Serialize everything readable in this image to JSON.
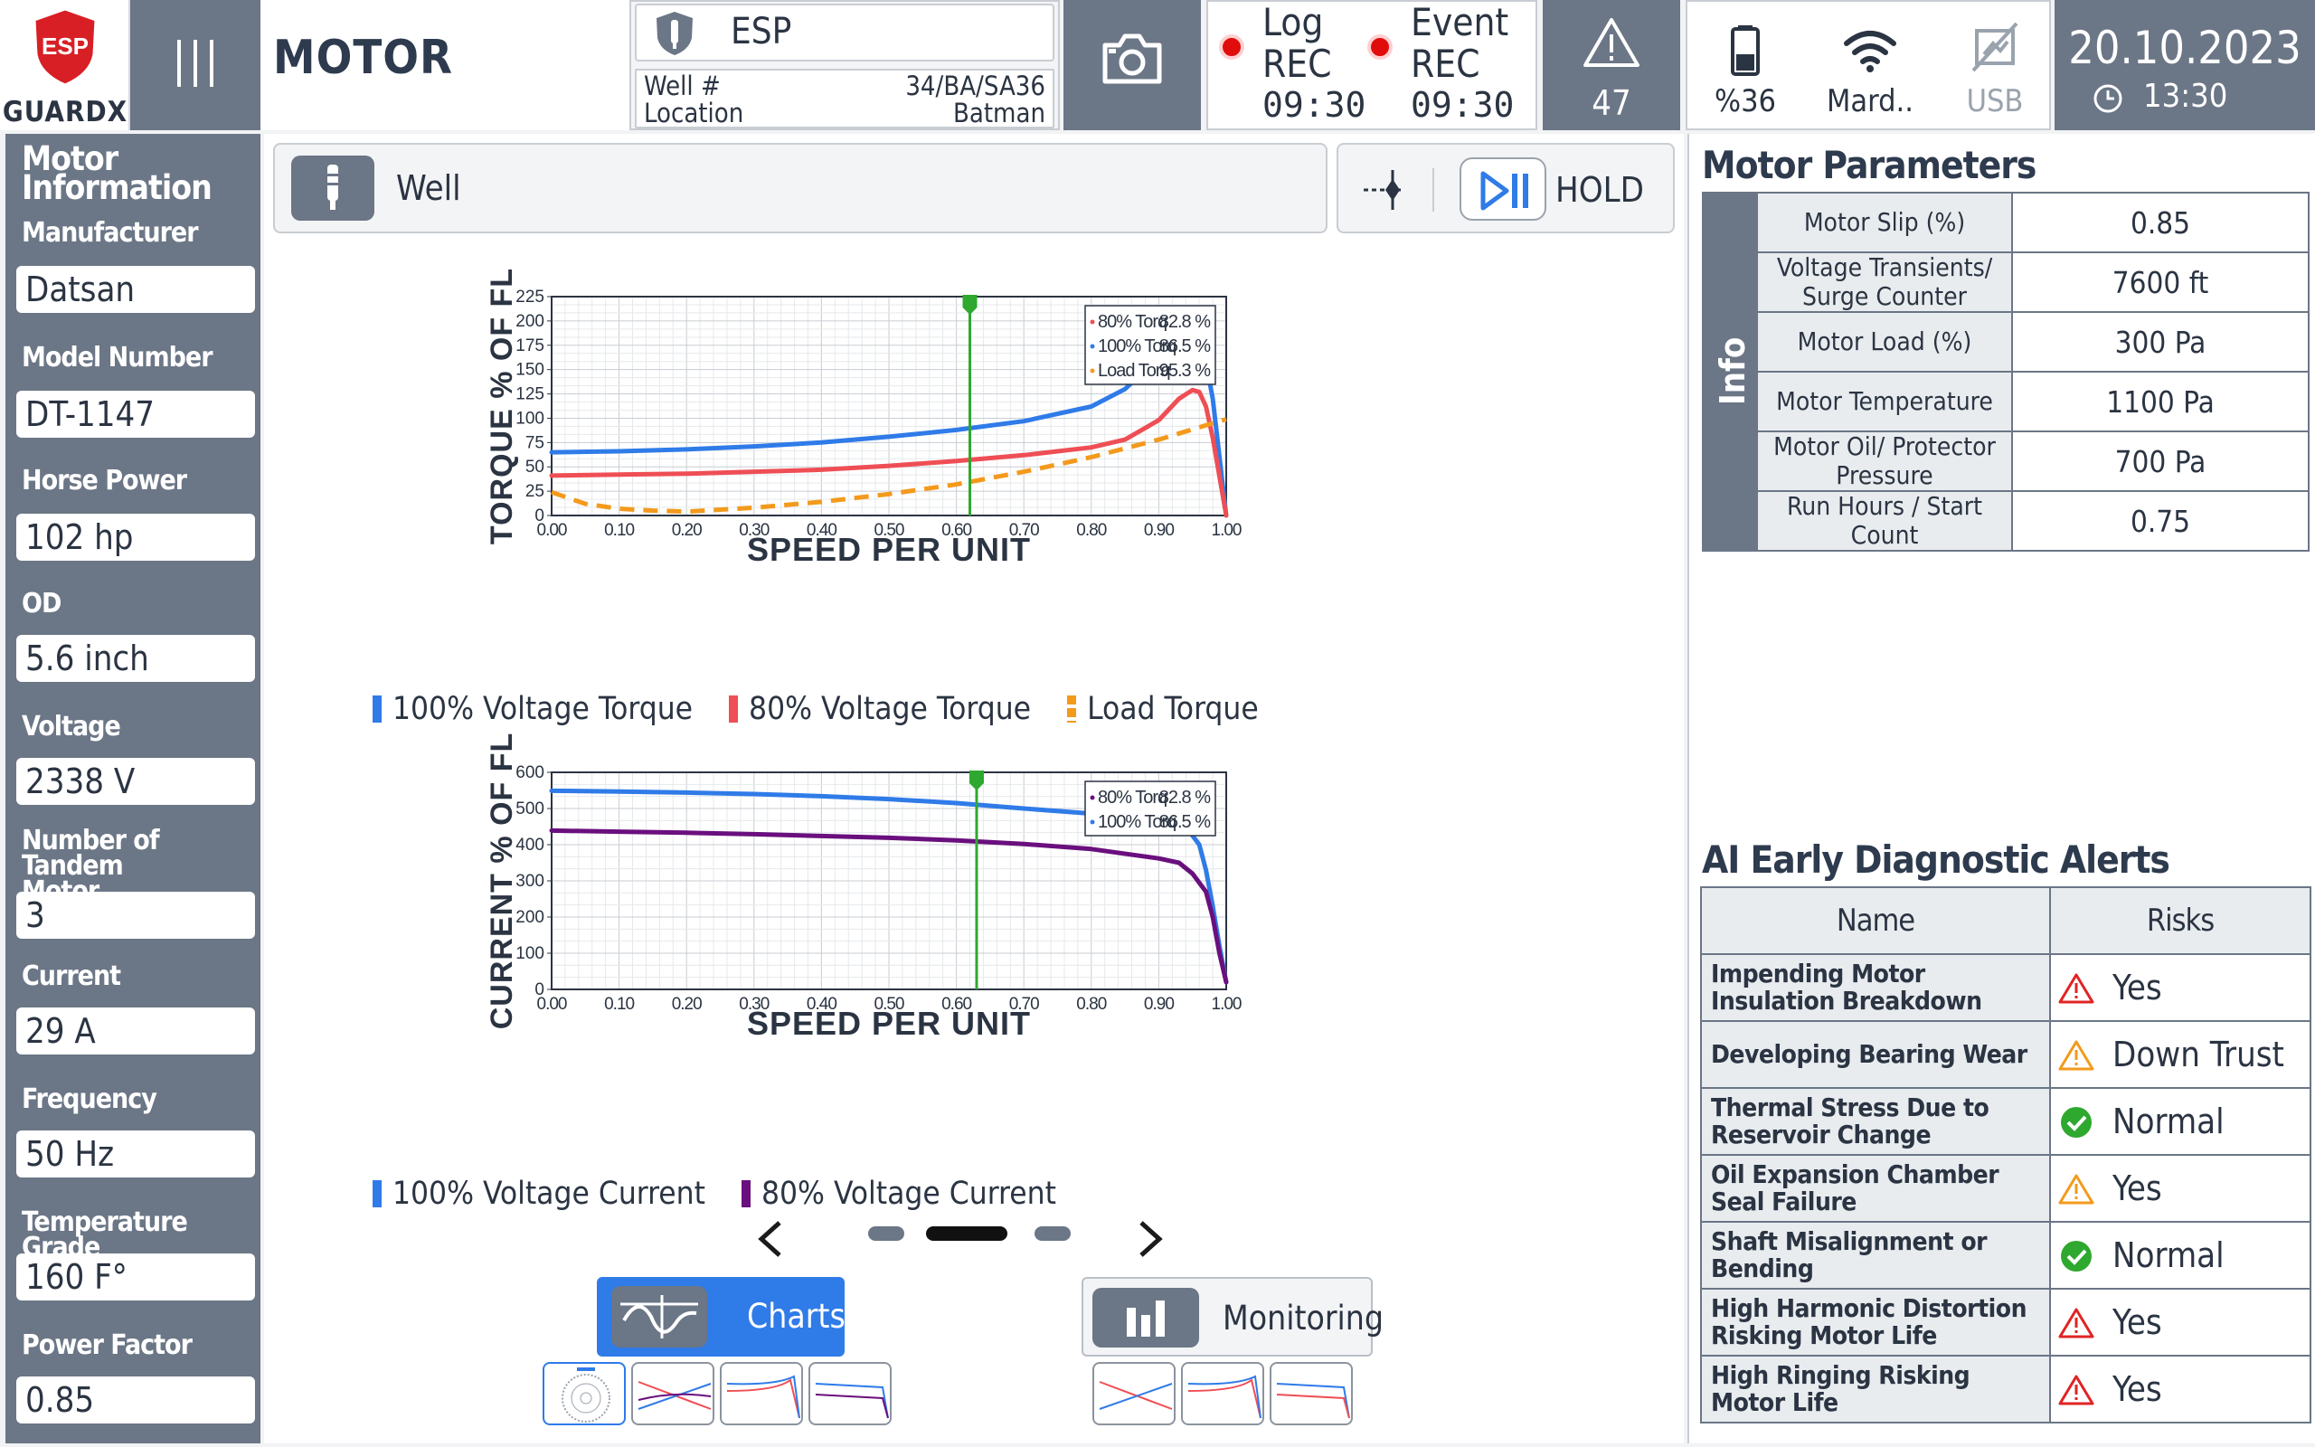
{
  "header": {
    "brand": {
      "badge": "ESP",
      "name": "GUARDX"
    },
    "title": "MOTOR",
    "esp": {
      "label": "ESP",
      "well_label": "Well #",
      "well_value": "34/BA/SA36",
      "location_label": "Location",
      "location_value": "Batman"
    },
    "log_rec": {
      "line1": "Log",
      "line2": "REC",
      "time": "09:30"
    },
    "event_rec": {
      "line1": "Event",
      "line2": "REC",
      "time": "09:30"
    },
    "alert_count": "47",
    "battery": "%36",
    "wifi": "Mard..",
    "usb": "USB",
    "date": "20.10.2023",
    "time": "13:30"
  },
  "motor_info": {
    "title": "Motor Information",
    "fields": [
      {
        "label": "Manufacturer",
        "value": "Datsan"
      },
      {
        "label": "Model Number",
        "value": "DT-1147"
      },
      {
        "label": "Horse Power",
        "value": "102 hp"
      },
      {
        "label": "OD",
        "value": "5.6 inch"
      },
      {
        "label": "Voltage",
        "value": "2338 V"
      },
      {
        "label": "Number of Tandem Motor",
        "value": "3"
      },
      {
        "label": "Current",
        "value": "29 A"
      },
      {
        "label": "Frequency",
        "value": "50 Hz"
      },
      {
        "label": "Temperature Grade",
        "value": "160 F°"
      },
      {
        "label": "Power Factor",
        "value": "0.85"
      }
    ]
  },
  "center": {
    "well_label": "Well",
    "hold_label": "HOLD",
    "tabs": {
      "charts": "Charts",
      "monitoring": "Monitoring"
    }
  },
  "colors": {
    "slate": "#6b7686",
    "blue": "#2f7be8",
    "red": "#ef4e55",
    "orange": "#f39a1d",
    "purple": "#6a0f7e",
    "green": "#2ea82e"
  },
  "chart_data": [
    {
      "type": "line",
      "xlabel": "SPEED PER UNIT",
      "ylabel": "TORQUE % OF FL",
      "xlim": [
        0,
        1
      ],
      "ylim": [
        0,
        225
      ],
      "xticks": [
        "0.00",
        "0.10",
        "0.20",
        "0.30",
        "0.40",
        "0.50",
        "0.60",
        "0.70",
        "0.80",
        "0.90",
        "1.00"
      ],
      "yticks": [
        "0",
        "25",
        "50",
        "75",
        "100",
        "125",
        "150",
        "175",
        "200",
        "225"
      ],
      "marker_x": 0.62,
      "series": [
        {
          "name": "100% Voltage Torque",
          "color": "#2f7be8",
          "style": "solid",
          "x": [
            0,
            0.1,
            0.2,
            0.3,
            0.4,
            0.5,
            0.6,
            0.7,
            0.8,
            0.85,
            0.9,
            0.93,
            0.95,
            0.96,
            0.98,
            1.0
          ],
          "y": [
            65,
            66,
            68,
            71,
            75,
            81,
            88,
            97,
            112,
            130,
            162,
            190,
            203,
            195,
            120,
            0
          ]
        },
        {
          "name": "80% Voltage Torque",
          "color": "#ef4e55",
          "style": "solid",
          "x": [
            0,
            0.1,
            0.2,
            0.3,
            0.4,
            0.5,
            0.6,
            0.7,
            0.8,
            0.85,
            0.9,
            0.93,
            0.95,
            0.96,
            0.97,
            0.98,
            1.0
          ],
          "y": [
            41,
            42,
            43,
            45,
            47,
            51,
            56,
            62,
            70,
            78,
            98,
            120,
            129,
            127,
            112,
            80,
            0
          ]
        },
        {
          "name": "Load Torque",
          "color": "#f39a1d",
          "style": "dashed",
          "x": [
            0,
            0.05,
            0.1,
            0.15,
            0.2,
            0.3,
            0.4,
            0.5,
            0.6,
            0.7,
            0.8,
            0.9,
            1.0
          ],
          "y": [
            24,
            12,
            7,
            5,
            4,
            8,
            14,
            22,
            32,
            45,
            60,
            78,
            99
          ]
        }
      ],
      "legend_box": [
        {
          "label": "80% Torq",
          "value": "82.8 %",
          "color": "#ef4e55"
        },
        {
          "label": "100% Torq",
          "value": "86.5 %",
          "color": "#2f7be8"
        },
        {
          "label": "Load Torq",
          "value": "95.3 %",
          "color": "#f39a1d"
        }
      ],
      "legend": [
        "100% Voltage Torque",
        "80% Voltage Torque",
        "Load Torque"
      ]
    },
    {
      "type": "line",
      "xlabel": "SPEED PER UNIT",
      "ylabel": "CURRENT % OF FL",
      "xlim": [
        0,
        1
      ],
      "ylim": [
        0,
        600
      ],
      "xticks": [
        "0.00",
        "0.10",
        "0.20",
        "0.30",
        "0.40",
        "0.50",
        "0.60",
        "0.70",
        "0.80",
        "0.90",
        "1.00"
      ],
      "yticks": [
        "0",
        "100",
        "200",
        "300",
        "400",
        "500",
        "600"
      ],
      "marker_x": 0.63,
      "series": [
        {
          "name": "100% Voltage Current",
          "color": "#2f7be8",
          "style": "solid",
          "x": [
            0,
            0.1,
            0.2,
            0.3,
            0.4,
            0.5,
            0.6,
            0.7,
            0.8,
            0.9,
            0.94,
            0.96,
            0.97,
            0.98,
            0.99,
            1.0
          ],
          "y": [
            549,
            547,
            544,
            540,
            534,
            526,
            515,
            500,
            486,
            474,
            450,
            400,
            330,
            230,
            120,
            20
          ]
        },
        {
          "name": "80% Voltage Current",
          "color": "#6a0f7e",
          "style": "solid",
          "x": [
            0,
            0.1,
            0.2,
            0.3,
            0.4,
            0.5,
            0.6,
            0.7,
            0.8,
            0.9,
            0.93,
            0.95,
            0.97,
            0.98,
            0.99,
            1.0
          ],
          "y": [
            439,
            436,
            433,
            429,
            424,
            419,
            412,
            402,
            388,
            362,
            350,
            320,
            270,
            200,
            100,
            20
          ]
        }
      ],
      "legend_box": [
        {
          "label": "80% Torq",
          "value": "82.8 %",
          "color": "#6a0f7e"
        },
        {
          "label": "100% Torq",
          "value": "86.5 %",
          "color": "#2f7be8"
        }
      ],
      "legend": [
        "100% Voltage Current",
        "80% Voltage Current"
      ]
    }
  ],
  "motor_parameters": {
    "title": "Motor Parameters",
    "side_label": "Info",
    "rows": [
      {
        "key": "Motor Slip (%)",
        "value": "0.85"
      },
      {
        "key": "Voltage  Transients/ Surge Counter",
        "value": "7600 ft"
      },
      {
        "key": "Motor Load (%)",
        "value": "300 Pa"
      },
      {
        "key": "Motor Temperature",
        "value": "1100 Pa"
      },
      {
        "key": "Motor Oil/ Protector Pressure",
        "value": "700 Pa"
      },
      {
        "key": "Run Hours / Start Count",
        "value": "0.75"
      }
    ]
  },
  "ai_alerts": {
    "title": "AI Early Diagnostic Alerts",
    "headers": {
      "name": "Name",
      "risks": "Risks"
    },
    "rows": [
      {
        "name": "Impending Motor Insulation Breakdown",
        "risk": "Yes",
        "level": "danger"
      },
      {
        "name": "Developing Bearing Wear",
        "risk": "Down Trust",
        "level": "warning"
      },
      {
        "name": "Thermal Stress Due to Reservoir Change",
        "risk": "Normal",
        "level": "ok"
      },
      {
        "name": "Oil Expansion Chamber Seal Failure",
        "risk": "Yes",
        "level": "warning"
      },
      {
        "name": "Shaft Misalignment or Bending",
        "risk": "Normal",
        "level": "ok"
      },
      {
        "name": "High Harmonic Distortion Risking Motor Life",
        "risk": "Yes",
        "level": "danger"
      },
      {
        "name": "High Ringing Risking Motor Life",
        "risk": "Yes",
        "level": "danger"
      }
    ]
  }
}
